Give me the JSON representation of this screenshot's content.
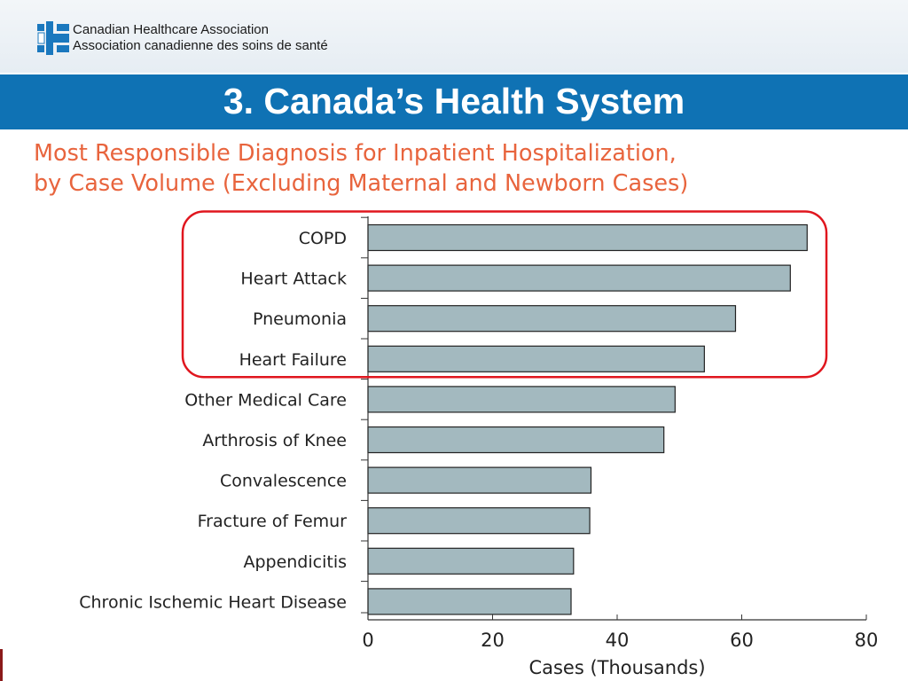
{
  "header": {
    "org_name_en": "Canadian Healthcare Association",
    "org_name_fr": "Association canadienne des soins de santé",
    "slide_title": "3. Canada’s Health System"
  },
  "colors": {
    "title_bar": "#0f72b4",
    "chart_title": "#e8643d",
    "bar_fill": "#a3b9bf",
    "highlight": "#e0161e",
    "logo": "#1a78be"
  },
  "icons": {
    "logo": "cha-logo-icon"
  },
  "chart_data": {
    "type": "bar",
    "orientation": "horizontal",
    "title_line1": "Most Responsible Diagnosis for Inpatient Hospitalization,",
    "title_line2": "by Case Volume (Excluding Maternal and Newborn Cases)",
    "xlabel": "Cases (Thousands)",
    "ylabel": "",
    "xlim": [
      0,
      80
    ],
    "xticks": [
      0,
      20,
      40,
      60,
      80
    ],
    "grid": false,
    "categories": [
      "COPD",
      "Heart Attack",
      "Pneumonia",
      "Heart Failure",
      "Other Medical Care",
      "Arthrosis of Knee",
      "Convalescence",
      "Fracture of Femur",
      "Appendicitis",
      "Chronic Ischemic Heart Disease"
    ],
    "values": [
      70.5,
      67.8,
      59.0,
      54.0,
      49.3,
      47.5,
      35.8,
      35.6,
      33.0,
      32.6
    ],
    "highlighted_categories": [
      "COPD",
      "Heart Attack",
      "Pneumonia",
      "Heart Failure"
    ]
  }
}
